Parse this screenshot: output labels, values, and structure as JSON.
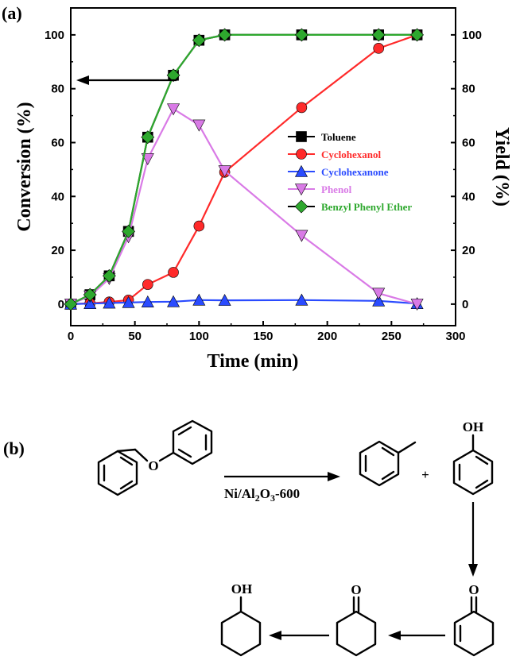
{
  "panel_a_label": "(a)",
  "panel_b_label": "(b)",
  "chart_data": {
    "type": "line",
    "xlabel": "Time (min)",
    "ylabel": "Conversion (%)",
    "y2label": "Yield (%)",
    "xlim": [
      0,
      300
    ],
    "ylim": [
      -8,
      110
    ],
    "x_ticks": [
      0,
      50,
      100,
      150,
      200,
      250,
      300
    ],
    "y_ticks": [
      0,
      20,
      40,
      60,
      80,
      100
    ],
    "grid": false,
    "legend_position": "center-right",
    "series": [
      {
        "name": "Toluene",
        "color": "#000000",
        "marker": "square",
        "x": [
          0,
          15,
          30,
          45,
          60,
          80,
          100,
          120,
          180,
          240,
          270
        ],
        "y": [
          0,
          3.5,
          10.5,
          27,
          62,
          85,
          98,
          100,
          100,
          100,
          100
        ]
      },
      {
        "name": "Cyclohexanol",
        "color": "#ff2a2a",
        "marker": "circle",
        "x": [
          0,
          15,
          30,
          45,
          60,
          80,
          100,
          120,
          180,
          240,
          270
        ],
        "y": [
          0,
          0.3,
          0.8,
          1.5,
          7.3,
          11.8,
          29,
          49,
          73,
          95,
          100
        ]
      },
      {
        "name": "Cyclohexanone",
        "color": "#2a4bff",
        "marker": "triangle-up",
        "x": [
          0,
          15,
          30,
          45,
          60,
          80,
          100,
          120,
          180,
          240,
          270
        ],
        "y": [
          0,
          0.2,
          0.4,
          0.6,
          0.8,
          0.9,
          1.5,
          1.4,
          1.5,
          1.2,
          0.2
        ]
      },
      {
        "name": "Phenol",
        "color": "#d97ae6",
        "marker": "triangle-down",
        "x": [
          0,
          15,
          30,
          45,
          60,
          80,
          100,
          120,
          180,
          240,
          270
        ],
        "y": [
          0,
          3,
          9.5,
          25,
          54,
          72.5,
          66.5,
          49.5,
          25.5,
          4,
          0
        ]
      },
      {
        "name": "Benzyl Phenyl Ether",
        "color": "#2ea82e",
        "marker": "diamond",
        "x": [
          0,
          15,
          30,
          45,
          60,
          80,
          100,
          120,
          180,
          240,
          270
        ],
        "y": [
          0,
          3.5,
          10.5,
          27,
          62,
          85,
          98,
          100,
          100,
          100,
          100
        ]
      }
    ]
  },
  "scheme": {
    "catalyst": "Ni/Al",
    "catalyst_sub1": "2",
    "catalyst_mid": "O",
    "catalyst_sub2": "3",
    "catalyst_suffix": "-600",
    "plus": "+",
    "phenol_oh": "OH",
    "enone_o": "O",
    "ketone_o": "O",
    "alcohol_oh": "OH",
    "ether_o": "O"
  }
}
